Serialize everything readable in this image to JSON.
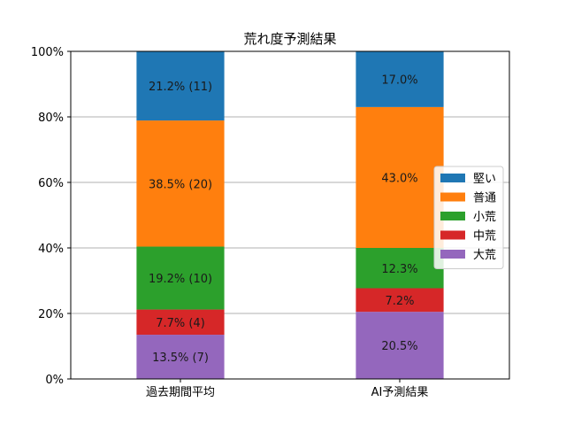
{
  "chart_data": {
    "type": "bar",
    "stacked": true,
    "title": "荒れ度予測結果",
    "xlabel": "",
    "ylabel": "",
    "categories": [
      "過去期間平均",
      "AI予測結果"
    ],
    "ylim": [
      0,
      100
    ],
    "yticks": [
      "0%",
      "20%",
      "40%",
      "60%",
      "80%",
      "100%"
    ],
    "grid": "horizontal",
    "legend_position": "right",
    "series": [
      {
        "name": "大荒",
        "color": "#9467bd",
        "values": [
          13.5,
          20.5
        ],
        "labels": [
          "13.5% (7)",
          "20.5%"
        ]
      },
      {
        "name": "中荒",
        "color": "#d62728",
        "values": [
          7.7,
          7.2
        ],
        "labels": [
          "7.7% (4)",
          "7.2%"
        ]
      },
      {
        "name": "小荒",
        "color": "#2ca02c",
        "values": [
          19.2,
          12.3
        ],
        "labels": [
          "19.2% (10)",
          "12.3%"
        ]
      },
      {
        "name": "普通",
        "color": "#ff7f0e",
        "values": [
          38.5,
          43.0
        ],
        "labels": [
          "38.5% (20)",
          "43.0%"
        ]
      },
      {
        "name": "堅い",
        "color": "#1f77b4",
        "values": [
          21.2,
          17.0
        ],
        "labels": [
          "21.2% (11)",
          "17.0%"
        ]
      }
    ],
    "legend_order": [
      "堅い",
      "普通",
      "小荒",
      "中荒",
      "大荒"
    ]
  }
}
